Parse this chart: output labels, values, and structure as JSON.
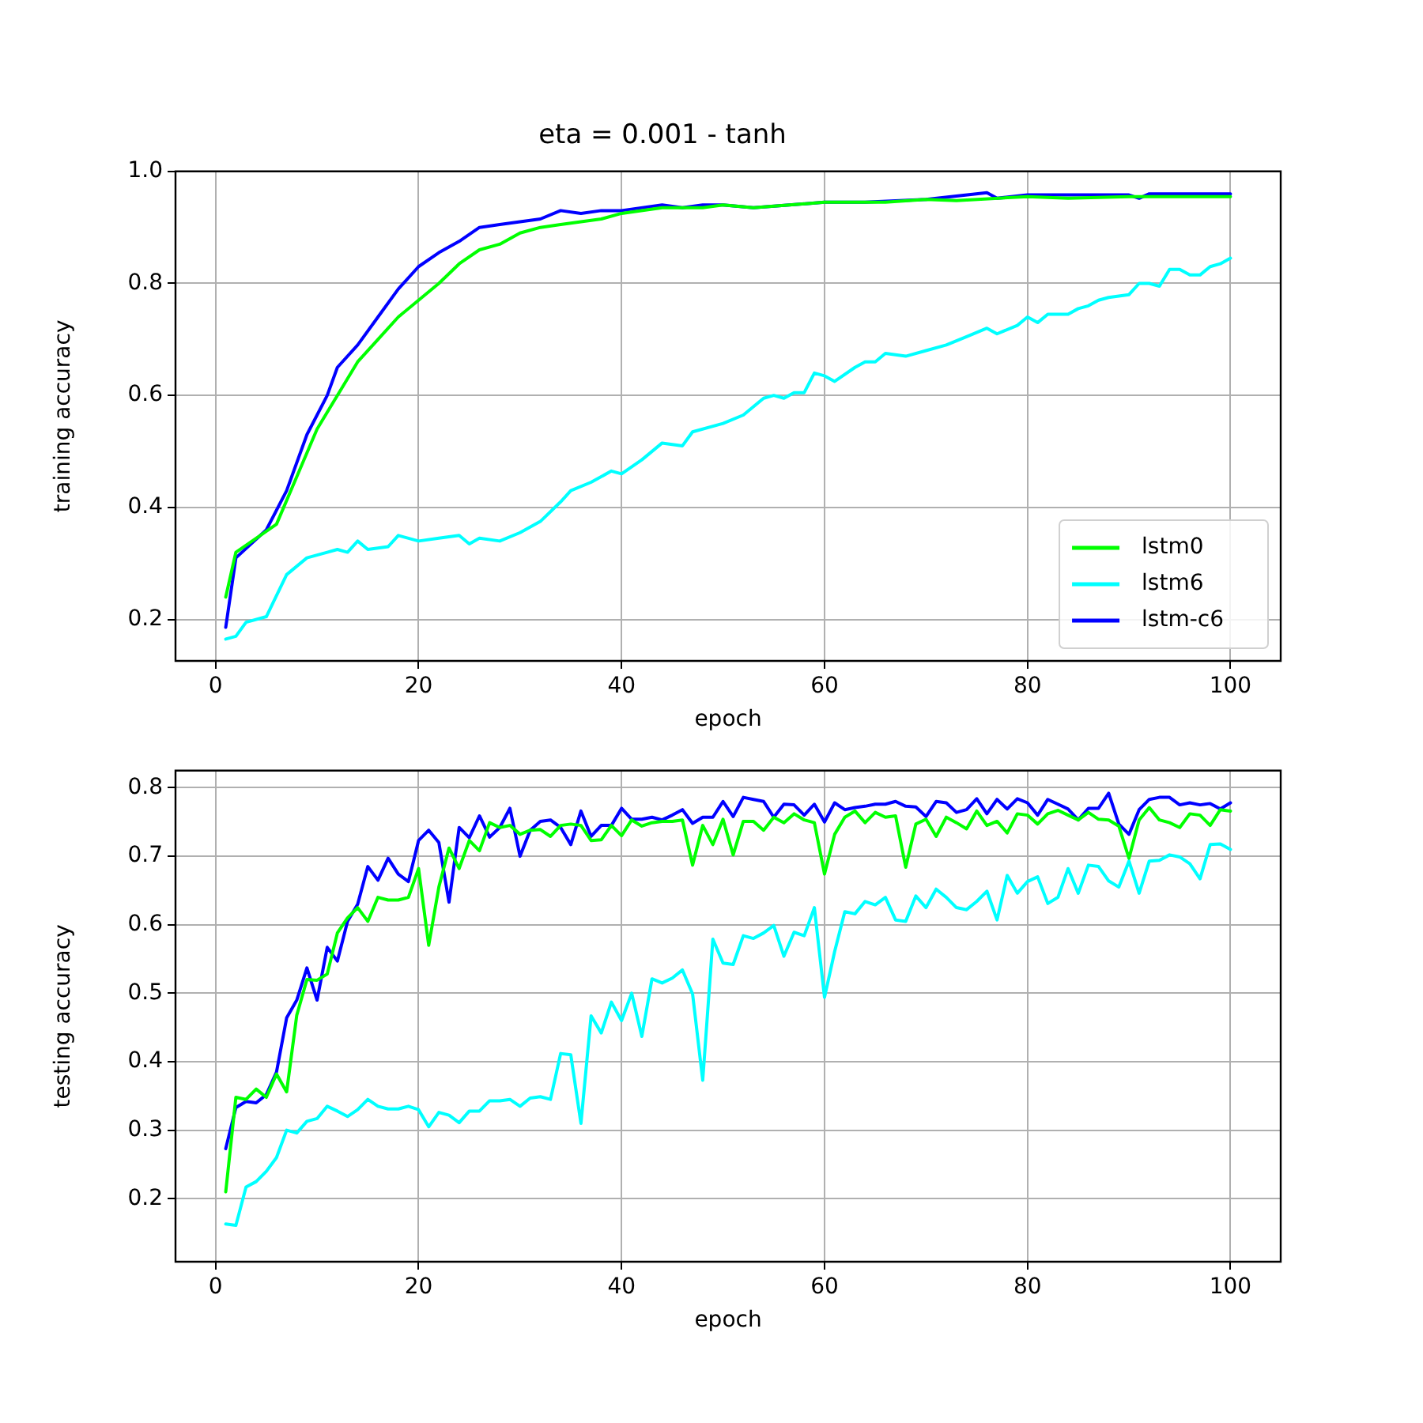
{
  "chart_data": [
    {
      "type": "line",
      "title": "eta = 0.001 - tanh",
      "xlabel": "epoch",
      "ylabel": "training accuracy",
      "xlim": [
        -3.95,
        104.95
      ],
      "ylim": [
        0.126,
        1.0
      ],
      "xticks": [
        0,
        20,
        40,
        60,
        80,
        100
      ],
      "yticks": [
        0.2,
        0.4,
        0.6,
        0.8,
        {
          "value": 1.0,
          "label": "1.0"
        }
      ],
      "grid": true,
      "legend": "bottom right",
      "series": [
        {
          "name": "lstm0",
          "color": "#00ff00",
          "x": [
            1,
            2,
            4,
            6,
            8,
            10,
            12,
            14,
            16,
            18,
            20,
            22,
            24,
            26,
            28,
            30,
            32,
            34,
            36,
            38,
            40,
            44,
            48,
            50,
            53,
            60,
            66,
            70,
            73,
            80,
            84,
            90,
            100
          ],
          "values": [
            0.24,
            0.32,
            0.345,
            0.37,
            0.455,
            0.54,
            0.6,
            0.66,
            0.7,
            0.74,
            0.77,
            0.8,
            0.835,
            0.86,
            0.87,
            0.89,
            0.9,
            0.905,
            0.91,
            0.915,
            0.925,
            0.935,
            0.935,
            0.94,
            0.935,
            0.945,
            0.945,
            0.95,
            0.948,
            0.955,
            0.952,
            0.955,
            0.955
          ]
        },
        {
          "name": "lstm6",
          "color": "#00ffff",
          "x": [
            1,
            2,
            3,
            5,
            7,
            9,
            11,
            12,
            13,
            14,
            15,
            17,
            18,
            20,
            22,
            24,
            25,
            26,
            28,
            30,
            32,
            34,
            35,
            37,
            39,
            40,
            42,
            44,
            46,
            47,
            50,
            52,
            54,
            55,
            56,
            57,
            58,
            59,
            60,
            61,
            63,
            64,
            65,
            66,
            68,
            70,
            72,
            74,
            76,
            77,
            79,
            80,
            81,
            82,
            84,
            85,
            86,
            87,
            88,
            90,
            91,
            92,
            93,
            94,
            95,
            96,
            97,
            98,
            99,
            100
          ],
          "values": [
            0.165,
            0.17,
            0.195,
            0.205,
            0.28,
            0.31,
            0.32,
            0.325,
            0.32,
            0.34,
            0.325,
            0.33,
            0.35,
            0.34,
            0.345,
            0.35,
            0.335,
            0.345,
            0.34,
            0.355,
            0.375,
            0.41,
            0.43,
            0.445,
            0.465,
            0.46,
            0.485,
            0.515,
            0.51,
            0.535,
            0.55,
            0.565,
            0.595,
            0.6,
            0.595,
            0.605,
            0.605,
            0.64,
            0.635,
            0.625,
            0.65,
            0.66,
            0.66,
            0.675,
            0.67,
            0.68,
            0.69,
            0.705,
            0.72,
            0.71,
            0.725,
            0.74,
            0.73,
            0.745,
            0.745,
            0.755,
            0.76,
            0.77,
            0.775,
            0.78,
            0.8,
            0.8,
            0.795,
            0.825,
            0.825,
            0.815,
            0.815,
            0.83,
            0.835,
            0.845
          ]
        },
        {
          "name": "lstm-c6",
          "color": "#0000ff",
          "x": [
            1,
            2,
            5,
            7,
            9,
            11,
            12,
            14,
            16,
            18,
            20,
            22,
            24,
            26,
            28,
            30,
            32,
            34,
            36,
            38,
            40,
            44,
            46,
            48,
            50,
            53,
            60,
            64,
            70,
            76,
            77,
            80,
            90,
            91,
            92,
            100
          ],
          "values": [
            0.186,
            0.31,
            0.36,
            0.43,
            0.53,
            0.6,
            0.65,
            0.69,
            0.74,
            0.79,
            0.83,
            0.855,
            0.875,
            0.9,
            0.905,
            0.91,
            0.915,
            0.93,
            0.925,
            0.93,
            0.93,
            0.94,
            0.935,
            0.94,
            0.94,
            0.935,
            0.945,
            0.945,
            0.95,
            0.962,
            0.952,
            0.958,
            0.958,
            0.952,
            0.96,
            0.96
          ]
        }
      ]
    },
    {
      "type": "line",
      "xlabel": "epoch",
      "ylabel": "testing accuracy",
      "xlim": [
        -3.95,
        104.95
      ],
      "ylim": [
        0.108,
        0.825
      ],
      "xticks": [
        0,
        20,
        40,
        60,
        80,
        100
      ],
      "yticks": [
        0.2,
        0.3,
        0.4,
        0.5,
        0.6,
        0.7,
        0.8
      ],
      "grid": true,
      "x": [
        1,
        2,
        3,
        4,
        5,
        6,
        7,
        8,
        9,
        10,
        11,
        12,
        13,
        14,
        15,
        16,
        17,
        18,
        19,
        20,
        21,
        22,
        23,
        24,
        25,
        26,
        27,
        28,
        29,
        30,
        31,
        32,
        33,
        34,
        35,
        36,
        37,
        38,
        39,
        40,
        41,
        42,
        43,
        44,
        45,
        46,
        47,
        48,
        49,
        50,
        51,
        52,
        53,
        54,
        55,
        56,
        57,
        58,
        59,
        60,
        61,
        62,
        63,
        64,
        65,
        66,
        67,
        68,
        69,
        70,
        71,
        72,
        73,
        74,
        75,
        76,
        77,
        78,
        79,
        80,
        81,
        82,
        83,
        84,
        85,
        86,
        87,
        88,
        89,
        90,
        91,
        92,
        93,
        94,
        95,
        96,
        97,
        98,
        99,
        100
      ],
      "series": [
        {
          "color": "#00ff00",
          "values": [
            0.21,
            0.348,
            0.345,
            0.36,
            0.348,
            0.382,
            0.356,
            0.468,
            0.52,
            0.519,
            0.528,
            0.588,
            0.61,
            0.625,
            0.605,
            0.64,
            0.636,
            0.636,
            0.64,
            0.682,
            0.57,
            0.655,
            0.712,
            0.682,
            0.723,
            0.708,
            0.749,
            0.742,
            0.745,
            0.732,
            0.738,
            0.739,
            0.729,
            0.745,
            0.747,
            0.745,
            0.723,
            0.724,
            0.745,
            0.73,
            0.753,
            0.744,
            0.749,
            0.751,
            0.751,
            0.753,
            0.687,
            0.745,
            0.717,
            0.754,
            0.702,
            0.751,
            0.751,
            0.738,
            0.757,
            0.749,
            0.762,
            0.753,
            0.749,
            0.674,
            0.732,
            0.757,
            0.766,
            0.749,
            0.764,
            0.757,
            0.759,
            0.684,
            0.747,
            0.754,
            0.729,
            0.757,
            0.749,
            0.74,
            0.766,
            0.745,
            0.751,
            0.734,
            0.762,
            0.76,
            0.747,
            0.762,
            0.767,
            0.76,
            0.753,
            0.764,
            0.754,
            0.753,
            0.744,
            0.697,
            0.753,
            0.771,
            0.753,
            0.749,
            0.742,
            0.762,
            0.76,
            0.745,
            0.768,
            0.766
          ]
        },
        {
          "color": "#00ffff",
          "values": [
            0.163,
            0.161,
            0.217,
            0.225,
            0.24,
            0.26,
            0.3,
            0.296,
            0.313,
            0.317,
            0.335,
            0.328,
            0.32,
            0.33,
            0.345,
            0.335,
            0.331,
            0.331,
            0.335,
            0.33,
            0.305,
            0.326,
            0.322,
            0.311,
            0.328,
            0.328,
            0.343,
            0.343,
            0.345,
            0.335,
            0.347,
            0.349,
            0.345,
            0.412,
            0.41,
            0.31,
            0.467,
            0.442,
            0.487,
            0.46,
            0.5,
            0.437,
            0.521,
            0.515,
            0.522,
            0.534,
            0.499,
            0.373,
            0.579,
            0.544,
            0.542,
            0.584,
            0.58,
            0.588,
            0.599,
            0.554,
            0.589,
            0.584,
            0.625,
            0.494,
            0.561,
            0.619,
            0.616,
            0.634,
            0.629,
            0.64,
            0.607,
            0.605,
            0.642,
            0.625,
            0.652,
            0.64,
            0.625,
            0.622,
            0.634,
            0.649,
            0.607,
            0.672,
            0.646,
            0.663,
            0.67,
            0.631,
            0.64,
            0.682,
            0.646,
            0.687,
            0.685,
            0.664,
            0.655,
            0.693,
            0.646,
            0.693,
            0.694,
            0.702,
            0.699,
            0.689,
            0.667,
            0.717,
            0.718,
            0.71
          ]
        },
        {
          "color": "#0000ff",
          "values": [
            0.273,
            0.333,
            0.342,
            0.34,
            0.352,
            0.385,
            0.464,
            0.49,
            0.537,
            0.49,
            0.567,
            0.547,
            0.605,
            0.63,
            0.685,
            0.665,
            0.697,
            0.674,
            0.663,
            0.723,
            0.738,
            0.72,
            0.633,
            0.742,
            0.727,
            0.759,
            0.728,
            0.742,
            0.77,
            0.7,
            0.738,
            0.751,
            0.753,
            0.742,
            0.717,
            0.766,
            0.729,
            0.745,
            0.745,
            0.77,
            0.754,
            0.754,
            0.757,
            0.753,
            0.76,
            0.768,
            0.748,
            0.757,
            0.757,
            0.78,
            0.758,
            0.786,
            0.783,
            0.78,
            0.757,
            0.776,
            0.775,
            0.76,
            0.776,
            0.75,
            0.778,
            0.768,
            0.771,
            0.773,
            0.776,
            0.776,
            0.78,
            0.773,
            0.772,
            0.758,
            0.78,
            0.778,
            0.764,
            0.768,
            0.784,
            0.762,
            0.783,
            0.769,
            0.784,
            0.778,
            0.76,
            0.783,
            0.776,
            0.769,
            0.753,
            0.77,
            0.77,
            0.792,
            0.747,
            0.732,
            0.768,
            0.783,
            0.786,
            0.786,
            0.775,
            0.778,
            0.775,
            0.777,
            0.769,
            0.778
          ]
        }
      ]
    }
  ]
}
